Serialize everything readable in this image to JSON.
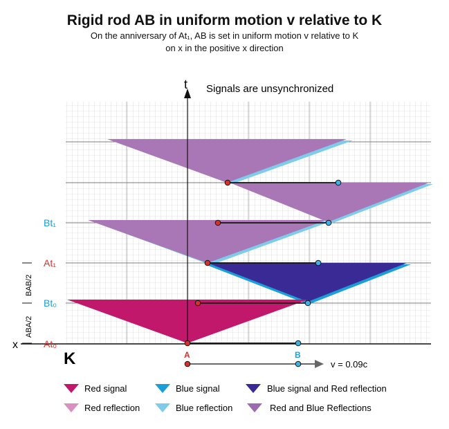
{
  "title": "Rigid rod AB in uniform motion v relative to K",
  "subtitle_line1": "On the anniversary of At₁, AB is set in uniform motion v relative to K",
  "subtitle_line2": "on x in the positive x direction",
  "note": "Signals are unsynchronized",
  "axes": {
    "t": "t",
    "x": "x",
    "frame": "K"
  },
  "levels": [
    "At₀",
    "Bt₀",
    "At₁",
    "Bt₁"
  ],
  "intervals": [
    "ABA/2",
    "BAB/2"
  ],
  "rod": {
    "a": "A",
    "b": "B",
    "velocity": "v = 0.09c"
  },
  "legend": [
    {
      "label": "Red signal",
      "color": "#c2186b"
    },
    {
      "label": "Blue signal",
      "color": "#1a9fd8"
    },
    {
      "label": "Blue signal and Red reflection",
      "color": "#3a2a96"
    },
    {
      "label": "Red reflection",
      "color": "#d98fc0"
    },
    {
      "label": "Blue reflection",
      "color": "#7fcbec"
    },
    {
      "label": "Red and Blue Reflections",
      "color": "#9c6bb0"
    }
  ],
  "colors": {
    "red": "#c2186b",
    "blue": "#1a9fd8",
    "navy": "#3a2a96",
    "pink": "#d98fc0",
    "lightblue": "#7fcbec",
    "purple": "#a977b5",
    "dot_red": "#d8302c",
    "dot_blue": "#3fb2e4"
  }
}
